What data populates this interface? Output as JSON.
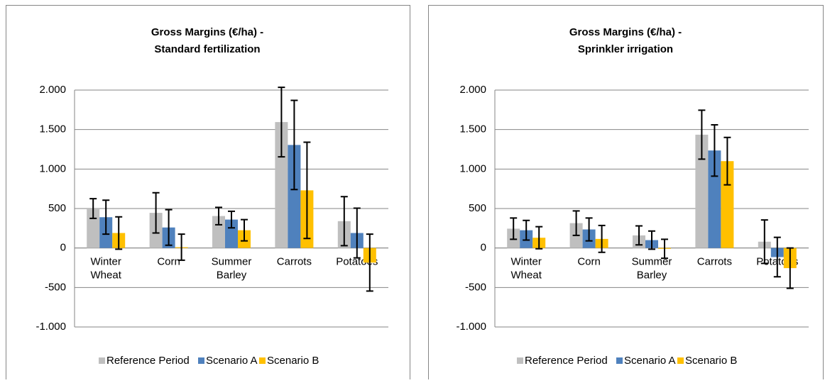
{
  "chart_data": [
    {
      "type": "bar",
      "title": [
        "Gross Margins (€/ha) -",
        "Standard fertilization"
      ],
      "categories": [
        "Winter Wheat",
        "Corn",
        "Summer Barley",
        "Carrots",
        "Potatoes"
      ],
      "series": [
        {
          "name": "Reference Period",
          "color": "#bfbfbf",
          "values": [
            500,
            445,
            405,
            1595,
            340
          ],
          "errors": [
            125,
            255,
            110,
            440,
            310
          ]
        },
        {
          "name": "Scenario A",
          "color": "#4f81bd",
          "values": [
            390,
            260,
            360,
            1305,
            190
          ],
          "errors": [
            215,
            225,
            105,
            565,
            315
          ]
        },
        {
          "name": "Scenario B",
          "color": "#ffc000",
          "values": [
            190,
            10,
            225,
            730,
            -185
          ],
          "errors": [
            205,
            165,
            135,
            610,
            360
          ]
        }
      ],
      "ylim": [
        -1000,
        2000
      ],
      "yticks": [
        {
          "value": -1000,
          "label": "-1.000"
        },
        -500,
        0,
        500,
        {
          "value": 1000,
          "label": "1.000"
        },
        {
          "value": 1500,
          "label": "1.500"
        },
        {
          "value": 2000,
          "label": "2.000"
        }
      ],
      "grid": true,
      "legend": "bottom"
    },
    {
      "type": "bar",
      "title": [
        "Gross Margins (€/ha) -",
        "Sprinkler irrigation"
      ],
      "categories": [
        "Winter Wheat",
        "Corn",
        "Summer Barley",
        "Carrots",
        "Potatoes"
      ],
      "series": [
        {
          "name": "Reference Period",
          "color": "#bfbfbf",
          "values": [
            245,
            315,
            160,
            1435,
            80
          ],
          "errors": [
            135,
            155,
            120,
            310,
            275
          ]
        },
        {
          "name": "Scenario A",
          "color": "#4f81bd",
          "values": [
            225,
            235,
            100,
            1235,
            -115
          ],
          "errors": [
            125,
            145,
            115,
            325,
            250
          ]
        },
        {
          "name": "Scenario B",
          "color": "#ffc000",
          "values": [
            130,
            115,
            -10,
            1100,
            -255
          ],
          "errors": [
            140,
            170,
            120,
            300,
            255
          ]
        }
      ],
      "ylim": [
        -1000,
        2000
      ],
      "yticks": [
        {
          "value": -1000,
          "label": "-1.000"
        },
        -500,
        0,
        500,
        {
          "value": 1000,
          "label": "1.000"
        },
        {
          "value": 1500,
          "label": "1.500"
        },
        {
          "value": 2000,
          "label": "2.000"
        }
      ],
      "grid": true,
      "legend": "bottom"
    }
  ]
}
